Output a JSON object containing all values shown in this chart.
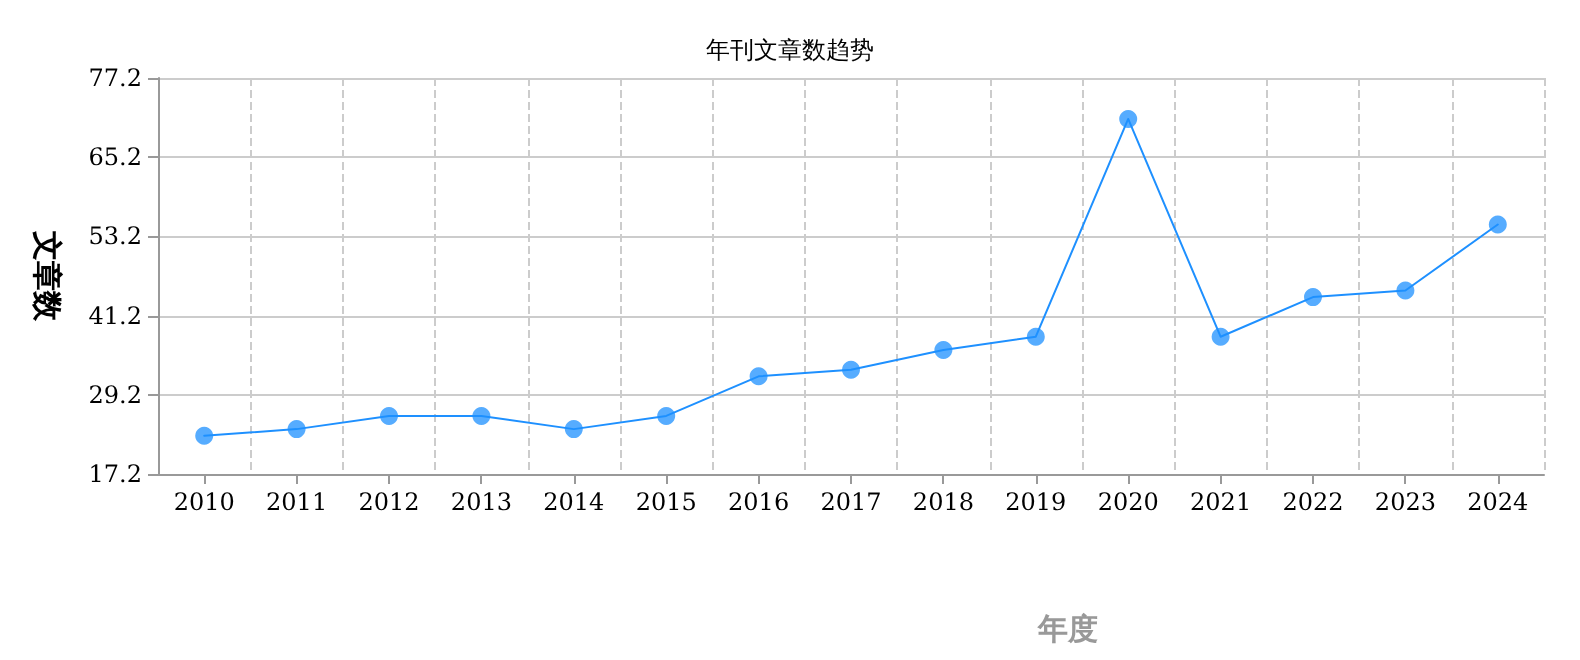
{
  "chart_data": {
    "type": "line",
    "title": "年刊文章数趋势",
    "xlabel": "年度",
    "ylabel": "文章数",
    "categories": [
      "2010",
      "2011",
      "2012",
      "2013",
      "2014",
      "2015",
      "2016",
      "2017",
      "2018",
      "2019",
      "2020",
      "2021",
      "2022",
      "2023",
      "2024"
    ],
    "series": [
      {
        "color": "#1e90ff",
        "values": [
          23,
          24,
          26,
          26,
          24,
          26,
          32,
          33,
          36,
          38,
          71,
          38,
          44,
          45,
          55
        ]
      }
    ],
    "ylim": [
      17.2,
      77.2
    ],
    "yticks": [
      17.2,
      29.2,
      41.2,
      53.2,
      65.2,
      77.2
    ],
    "grid": true,
    "marker": "circle",
    "line_style": "solid"
  }
}
